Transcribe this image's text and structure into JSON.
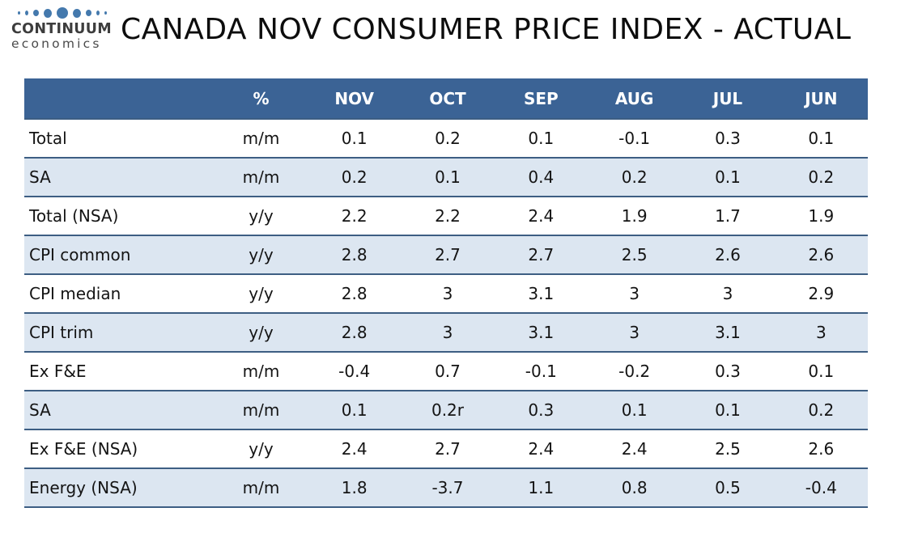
{
  "brand": {
    "name": "CONTINUUM",
    "subtitle": "economics"
  },
  "title": "CANADA NOV CONSUMER PRICE INDEX - ACTUAL",
  "colors": {
    "header_bg": "#3b6395",
    "header_text": "#ffffff",
    "row_alt_bg": "#dce6f1",
    "row_bg": "#ffffff",
    "divider": "#3d5e83",
    "body_text": "#141414",
    "logo_dot": "#4479ad"
  },
  "table": {
    "columns": [
      "",
      "%",
      "NOV",
      "OCT",
      "SEP",
      "AUG",
      "JUL",
      "JUN"
    ],
    "rows": [
      {
        "label": "Total",
        "unit": "m/m",
        "values": [
          "0.1",
          "0.2",
          "0.1",
          "-0.1",
          "0.3",
          "0.1"
        ]
      },
      {
        "label": "SA",
        "unit": "m/m",
        "values": [
          "0.2",
          "0.1",
          "0.4",
          "0.2",
          "0.1",
          "0.2"
        ]
      },
      {
        "label": "Total (NSA)",
        "unit": "y/y",
        "values": [
          "2.2",
          "2.2",
          "2.4",
          "1.9",
          "1.7",
          "1.9"
        ]
      },
      {
        "label": "CPI common",
        "unit": "y/y",
        "values": [
          "2.8",
          "2.7",
          "2.7",
          "2.5",
          "2.6",
          "2.6"
        ]
      },
      {
        "label": "CPI median",
        "unit": "y/y",
        "values": [
          "2.8",
          "3",
          "3.1",
          "3",
          "3",
          "2.9"
        ]
      },
      {
        "label": "CPI trim",
        "unit": "y/y",
        "values": [
          "2.8",
          "3",
          "3.1",
          "3",
          "3.1",
          "3"
        ]
      },
      {
        "label": "Ex F&E",
        "unit": "m/m",
        "values": [
          "-0.4",
          "0.7",
          "-0.1",
          "-0.2",
          "0.3",
          "0.1"
        ]
      },
      {
        "label": "SA",
        "unit": "m/m",
        "values": [
          "0.1",
          "0.2r",
          "0.3",
          "0.1",
          "0.1",
          "0.2"
        ]
      },
      {
        "label": "Ex F&E (NSA)",
        "unit": "y/y",
        "values": [
          "2.4",
          "2.7",
          "2.4",
          "2.4",
          "2.5",
          "2.6"
        ]
      },
      {
        "label": "Energy (NSA)",
        "unit": "m/m",
        "values": [
          "1.8",
          "-3.7",
          "1.1",
          "0.8",
          "0.5",
          "-0.4"
        ]
      }
    ]
  },
  "chart_data": {
    "type": "table",
    "title": "CANADA NOV CONSUMER PRICE INDEX - ACTUAL",
    "columns": [
      "",
      "%",
      "NOV",
      "OCT",
      "SEP",
      "AUG",
      "JUL",
      "JUN"
    ],
    "rows": [
      [
        "Total",
        "m/m",
        0.1,
        0.2,
        0.1,
        -0.1,
        0.3,
        0.1
      ],
      [
        "SA",
        "m/m",
        0.2,
        0.1,
        0.4,
        0.2,
        0.1,
        0.2
      ],
      [
        "Total (NSA)",
        "y/y",
        2.2,
        2.2,
        2.4,
        1.9,
        1.7,
        1.9
      ],
      [
        "CPI common",
        "y/y",
        2.8,
        2.7,
        2.7,
        2.5,
        2.6,
        2.6
      ],
      [
        "CPI median",
        "y/y",
        2.8,
        3,
        3.1,
        3,
        3,
        2.9
      ],
      [
        "CPI trim",
        "y/y",
        2.8,
        3,
        3.1,
        3,
        3.1,
        3
      ],
      [
        "Ex F&E",
        "m/m",
        -0.4,
        0.7,
        -0.1,
        -0.2,
        0.3,
        0.1
      ],
      [
        "SA",
        "m/m",
        0.1,
        "0.2r",
        0.3,
        0.1,
        0.1,
        0.2
      ],
      [
        "Ex F&E (NSA)",
        "y/y",
        2.4,
        2.7,
        2.4,
        2.4,
        2.5,
        2.6
      ],
      [
        "Energy (NSA)",
        "m/m",
        1.8,
        -3.7,
        1.1,
        0.8,
        0.5,
        -0.4
      ]
    ]
  }
}
